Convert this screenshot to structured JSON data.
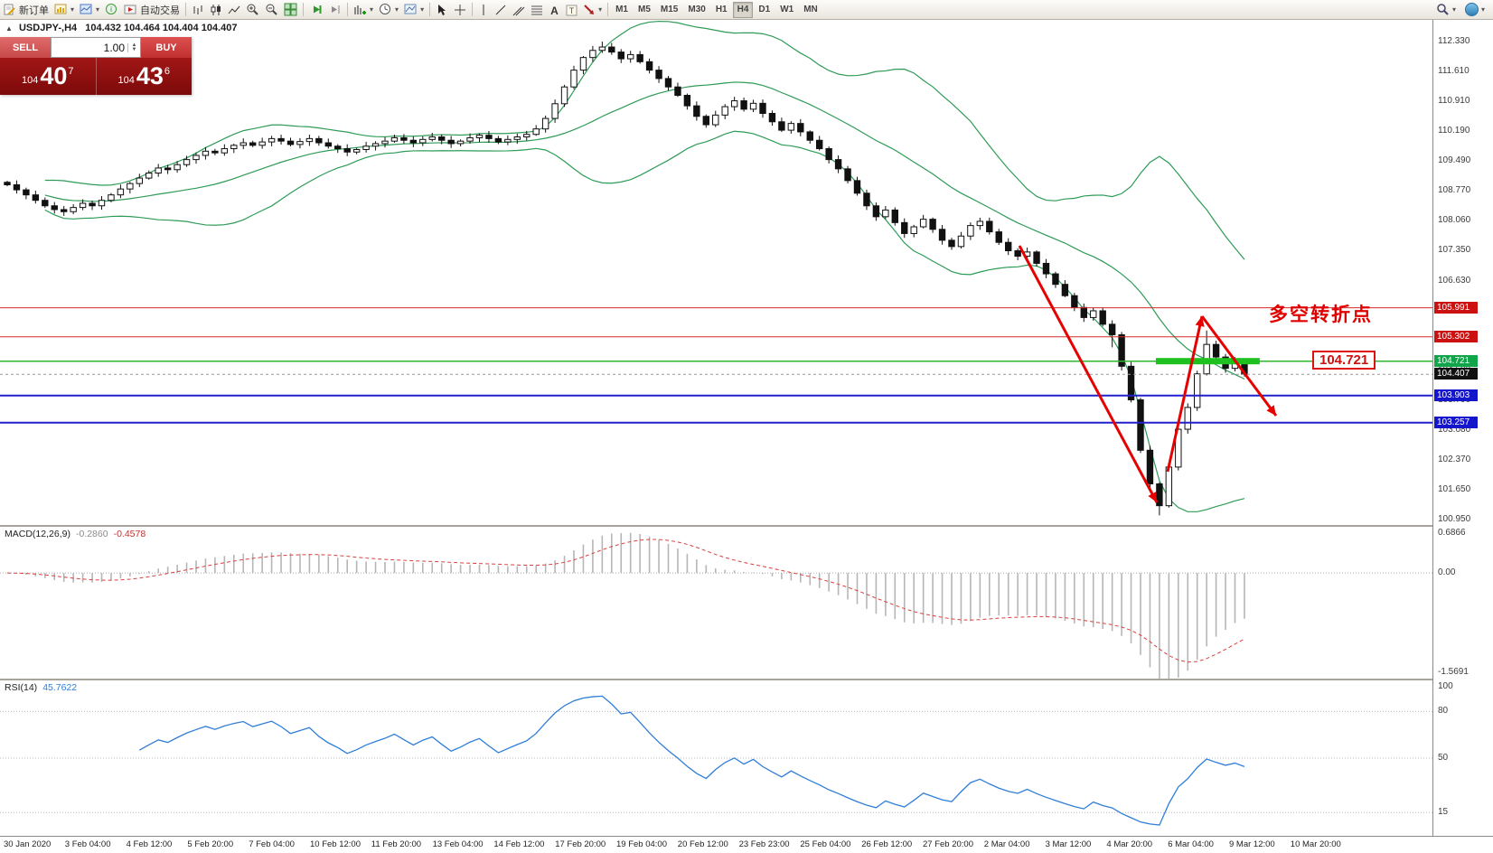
{
  "toolbar": {
    "new_order_label": "新订单",
    "autotrading_label": "自动交易",
    "timeframes": [
      "M1",
      "M5",
      "M15",
      "M30",
      "H1",
      "H4",
      "D1",
      "W1",
      "MN"
    ],
    "active_timeframe": "H4"
  },
  "icons": {
    "collapse": "▲",
    "dropdown": "▾",
    "spin_up": "▲",
    "spin_down": "▼"
  },
  "chart_header": {
    "symbol": "USDJPY-,H4",
    "ohlc": "104.432 104.464 104.404 104.407"
  },
  "trade_panel": {
    "sell_label": "SELL",
    "buy_label": "BUY",
    "volume": "1.00",
    "sell": {
      "small": "104",
      "big": "40",
      "sup": "7"
    },
    "buy": {
      "small": "104",
      "big": "43",
      "sup": "6"
    }
  },
  "annotation": {
    "text": "多空转折点",
    "price_label": "104.721"
  },
  "indicators": {
    "macd_label": "MACD(12,26,9)",
    "macd_main": "-0.2860",
    "macd_signal": "-0.4578",
    "rsi_label": "RSI(14)",
    "rsi_value": "45.7622"
  },
  "axis": {
    "price_labels": [
      {
        "text": "112.330",
        "value": 112.33
      },
      {
        "text": "111.610",
        "value": 111.61
      },
      {
        "text": "110.910",
        "value": 110.91
      },
      {
        "text": "110.190",
        "value": 110.19
      },
      {
        "text": "109.490",
        "value": 109.49
      },
      {
        "text": "108.770",
        "value": 108.77
      },
      {
        "text": "108.060",
        "value": 108.06
      },
      {
        "text": "107.350",
        "value": 107.35
      },
      {
        "text": "106.630",
        "value": 106.63
      },
      {
        "text": "105.920",
        "value": 105.92
      },
      {
        "text": "105.210",
        "value": 105.21
      },
      {
        "text": "104.500",
        "value": 104.5
      },
      {
        "text": "103.790",
        "value": 103.79
      },
      {
        "text": "103.080",
        "value": 103.08
      },
      {
        "text": "102.370",
        "value": 102.37
      },
      {
        "text": "101.650",
        "value": 101.65
      },
      {
        "text": "100.950",
        "value": 100.95
      }
    ],
    "tags": [
      {
        "text": "105.991",
        "value": 105.991,
        "color": "#cc1111"
      },
      {
        "text": "105.302",
        "value": 105.302,
        "color": "#cc1111"
      },
      {
        "text": "104.721",
        "value": 104.721,
        "color": "#10a54a"
      },
      {
        "text": "104.407",
        "value": 104.407,
        "color": "#111111"
      },
      {
        "text": "103.903",
        "value": 103.903,
        "color": "#1515cc"
      },
      {
        "text": "103.257",
        "value": 103.257,
        "color": "#1515cc"
      }
    ],
    "macd_labels": [
      {
        "text": "0.6866",
        "value": 0.6866
      },
      {
        "text": "0.00",
        "value": 0
      },
      {
        "text": "-1.5691",
        "value": -1.5691
      }
    ],
    "rsi_labels": [
      {
        "text": "100",
        "value": 100
      },
      {
        "text": "80",
        "value": 80
      },
      {
        "text": "50",
        "value": 50
      },
      {
        "text": "15",
        "value": 15
      }
    ],
    "time_labels": [
      "30 Jan 2020",
      "3 Feb 04:00",
      "4 Feb 12:00",
      "5 Feb 20:00",
      "7 Feb 04:00",
      "10 Feb 12:00",
      "11 Feb 20:00",
      "13 Feb 04:00",
      "14 Feb 12:00",
      "17 Feb 20:00",
      "19 Feb 04:00",
      "20 Feb 12:00",
      "23 Feb 23:00",
      "25 Feb 04:00",
      "26 Feb 12:00",
      "27 Feb 20:00",
      "2 Mar 04:00",
      "3 Mar 12:00",
      "4 Mar 20:00",
      "6 Mar 04:00",
      "9 Mar 12:00",
      "10 Mar 20:00"
    ]
  },
  "chart_data": {
    "type": "candlestick",
    "symbol": "USDJPY",
    "timeframe": "H4",
    "ylim": [
      100.95,
      112.33
    ],
    "open_first": 108.98,
    "wick_base": 0.07,
    "closes": [
      108.92,
      108.8,
      108.68,
      108.55,
      108.42,
      108.33,
      108.28,
      108.38,
      108.48,
      108.42,
      108.55,
      108.68,
      108.82,
      108.95,
      109.08,
      109.2,
      109.32,
      109.28,
      109.4,
      109.52,
      109.62,
      109.72,
      109.68,
      109.78,
      109.86,
      109.92,
      109.86,
      109.94,
      110.02,
      109.96,
      109.88,
      109.95,
      110.02,
      109.92,
      109.84,
      109.78,
      109.7,
      109.76,
      109.84,
      109.9,
      109.96,
      110.04,
      109.98,
      109.92,
      110.0,
      110.06,
      109.98,
      109.9,
      109.96,
      110.04,
      110.1,
      110.02,
      109.94,
      110.0,
      110.06,
      110.12,
      110.25,
      110.5,
      110.85,
      111.25,
      111.65,
      111.95,
      112.12,
      112.2,
      112.08,
      111.92,
      112.02,
      111.85,
      111.65,
      111.45,
      111.25,
      111.05,
      110.8,
      110.55,
      110.35,
      110.58,
      110.78,
      110.92,
      110.72,
      110.86,
      110.62,
      110.42,
      110.22,
      110.38,
      110.18,
      109.98,
      109.78,
      109.52,
      109.3,
      109.02,
      108.72,
      108.42,
      108.16,
      108.32,
      108.02,
      107.76,
      107.92,
      108.1,
      107.86,
      107.6,
      107.45,
      107.7,
      107.95,
      108.05,
      107.8,
      107.55,
      107.35,
      107.22,
      107.32,
      107.05,
      106.8,
      106.55,
      106.28,
      106.0,
      105.76,
      105.92,
      105.6,
      105.35,
      104.6,
      103.8,
      102.6,
      101.8,
      101.28,
      102.2,
      103.1,
      103.62,
      104.42,
      105.12,
      104.82,
      104.55,
      104.72,
      104.41
    ],
    "overrides": {
      "63": {
        "high": 112.33
      },
      "117": {
        "low": 105.05
      },
      "122": {
        "low": 101.05
      },
      "127": {
        "high": 105.45
      }
    },
    "hlines": [
      {
        "value": 105.991,
        "color": "#d62a2a",
        "width": 1
      },
      {
        "value": 105.302,
        "color": "#d62a2a",
        "width": 1
      },
      {
        "value": 104.721,
        "color": "#2eb82e",
        "width": 1.5
      },
      {
        "value": 103.903,
        "color": "#2020cc",
        "width": 2
      },
      {
        "value": 103.257,
        "color": "#2020cc",
        "width": 2
      }
    ],
    "bid_line": {
      "value": 104.407,
      "color": "#999999"
    },
    "bollinger": {
      "period": 20,
      "deviation": 2,
      "color": "#2e9b57"
    },
    "macd": {
      "fast": 12,
      "slow": 26,
      "signal": 9,
      "ylim": [
        -1.5691,
        0.6866
      ],
      "hist_color": "#b6b6b6",
      "signal_color": "#d84040"
    },
    "rsi": {
      "period": 14,
      "color": "#2f7ed8",
      "levels": [
        80,
        50,
        15
      ],
      "ylim": [
        0,
        100
      ]
    },
    "drawings": {
      "green_bar": {
        "price": 104.721,
        "from_candle": 122,
        "to_candle": 133,
        "color": "#1fc11f"
      },
      "arrows_color": "#e60000",
      "arrows": [
        [
          [
            1128,
            272
          ],
          [
            1280,
            556
          ]
        ],
        [
          [
            1292,
            522
          ],
          [
            1330,
            350
          ]
        ],
        [
          [
            1330,
            350
          ],
          [
            1412,
            460
          ]
        ]
      ]
    }
  }
}
